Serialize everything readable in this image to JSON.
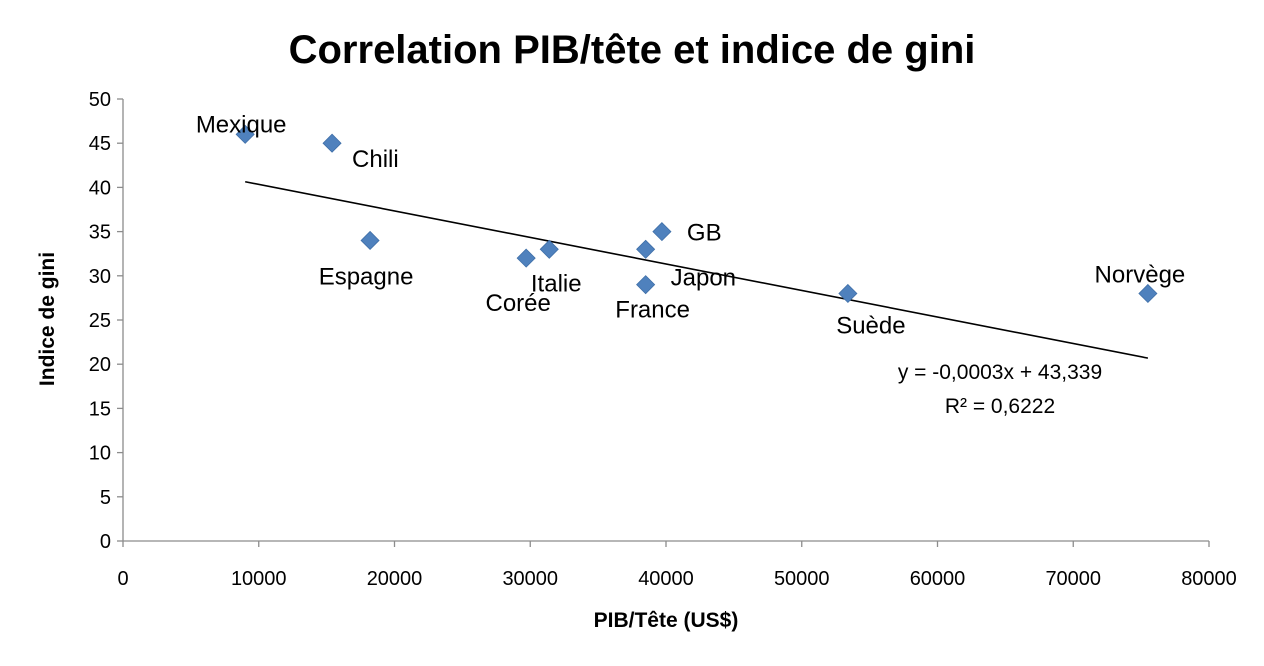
{
  "chart_data": {
    "type": "scatter",
    "title": "Correlation PIB/tête et indice de gini",
    "xlabel": "PIB/Tête (US$)",
    "ylabel": "Indice de gini",
    "xlim": [
      0,
      80000
    ],
    "ylim": [
      0,
      50
    ],
    "x_ticks": [
      "0",
      "10000",
      "20000",
      "30000",
      "40000",
      "50000",
      "60000",
      "70000",
      "80000"
    ],
    "y_ticks": [
      "0",
      "5",
      "10",
      "15",
      "20",
      "25",
      "30",
      "35",
      "40",
      "45",
      "50"
    ],
    "marker": "diamond",
    "marker_color": "#4F81BD",
    "points": [
      {
        "label": "Mexique",
        "x": 9000,
        "y": 46
      },
      {
        "label": "Chili",
        "x": 15400,
        "y": 45
      },
      {
        "label": "Espagne",
        "x": 18200,
        "y": 34
      },
      {
        "label": "Corée",
        "x": 29700,
        "y": 32
      },
      {
        "label": "Italie",
        "x": 31400,
        "y": 33
      },
      {
        "label": "France",
        "x": 38500,
        "y": 29
      },
      {
        "label": "Japon",
        "x": 38500,
        "y": 33
      },
      {
        "label": "GB",
        "x": 39700,
        "y": 35
      },
      {
        "label": "Suède",
        "x": 53400,
        "y": 28
      },
      {
        "label": "Norvège",
        "x": 75500,
        "y": 28
      }
    ],
    "trendline": {
      "type": "linear",
      "x_range": [
        9000,
        75500
      ],
      "equation": "y = -0,0003x + 43,339",
      "r_squared": "R² = 0,6222"
    },
    "grid": false,
    "legend": "none"
  }
}
